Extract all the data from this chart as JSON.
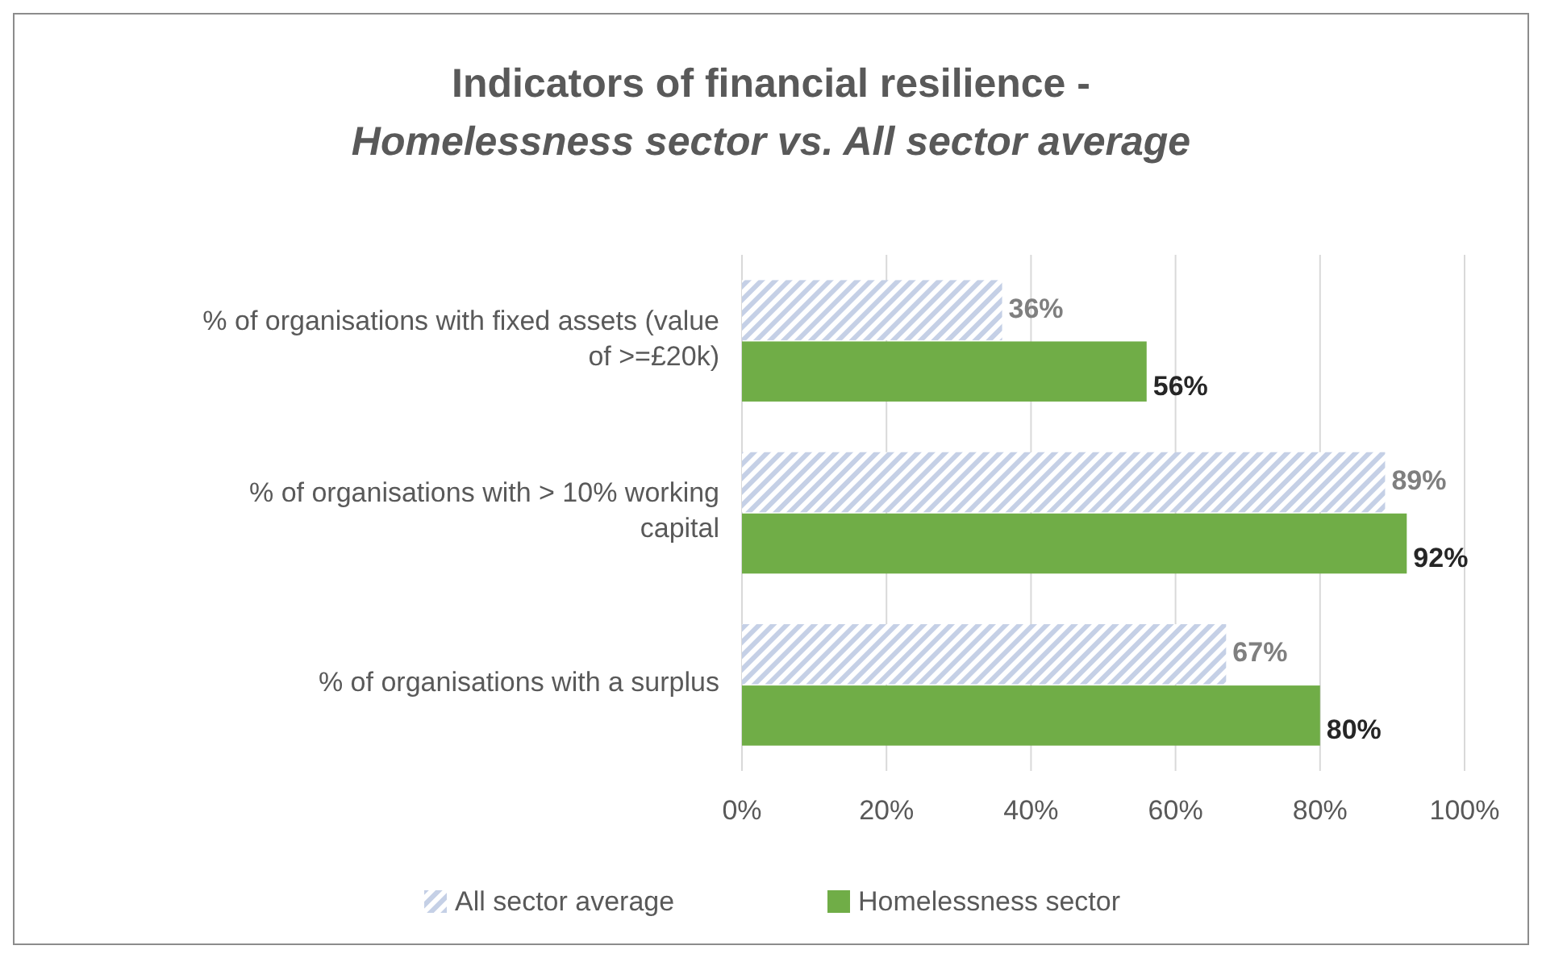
{
  "chart_data": {
    "type": "bar",
    "orientation": "horizontal",
    "title": "Indicators of financial resilience -",
    "subtitle": "Homelessness sector vs. All sector average",
    "categories": [
      "% of organisations with fixed assets (value of >=£20k)",
      "% of organisations with > 10% working capital",
      "% of organisations with a surplus"
    ],
    "series": [
      {
        "name": "All sector average",
        "color": "#c5d0e6",
        "values": [
          36,
          89,
          67
        ],
        "value_labels": [
          "36%",
          "89%",
          "67%"
        ]
      },
      {
        "name": "Homelessness sector",
        "color": "#70ad47",
        "values": [
          56,
          92,
          80
        ],
        "value_labels": [
          "56%",
          "92%",
          "80%"
        ]
      }
    ],
    "xlim": [
      0,
      100
    ],
    "xticks": [
      {
        "value": 0,
        "label": "0%"
      },
      {
        "value": 20,
        "label": "20%"
      },
      {
        "value": 40,
        "label": "40%"
      },
      {
        "value": 60,
        "label": "60%"
      },
      {
        "value": 80,
        "label": "80%"
      },
      {
        "value": 100,
        "label": "100%"
      }
    ],
    "grid": "x",
    "legend": "bottom"
  }
}
